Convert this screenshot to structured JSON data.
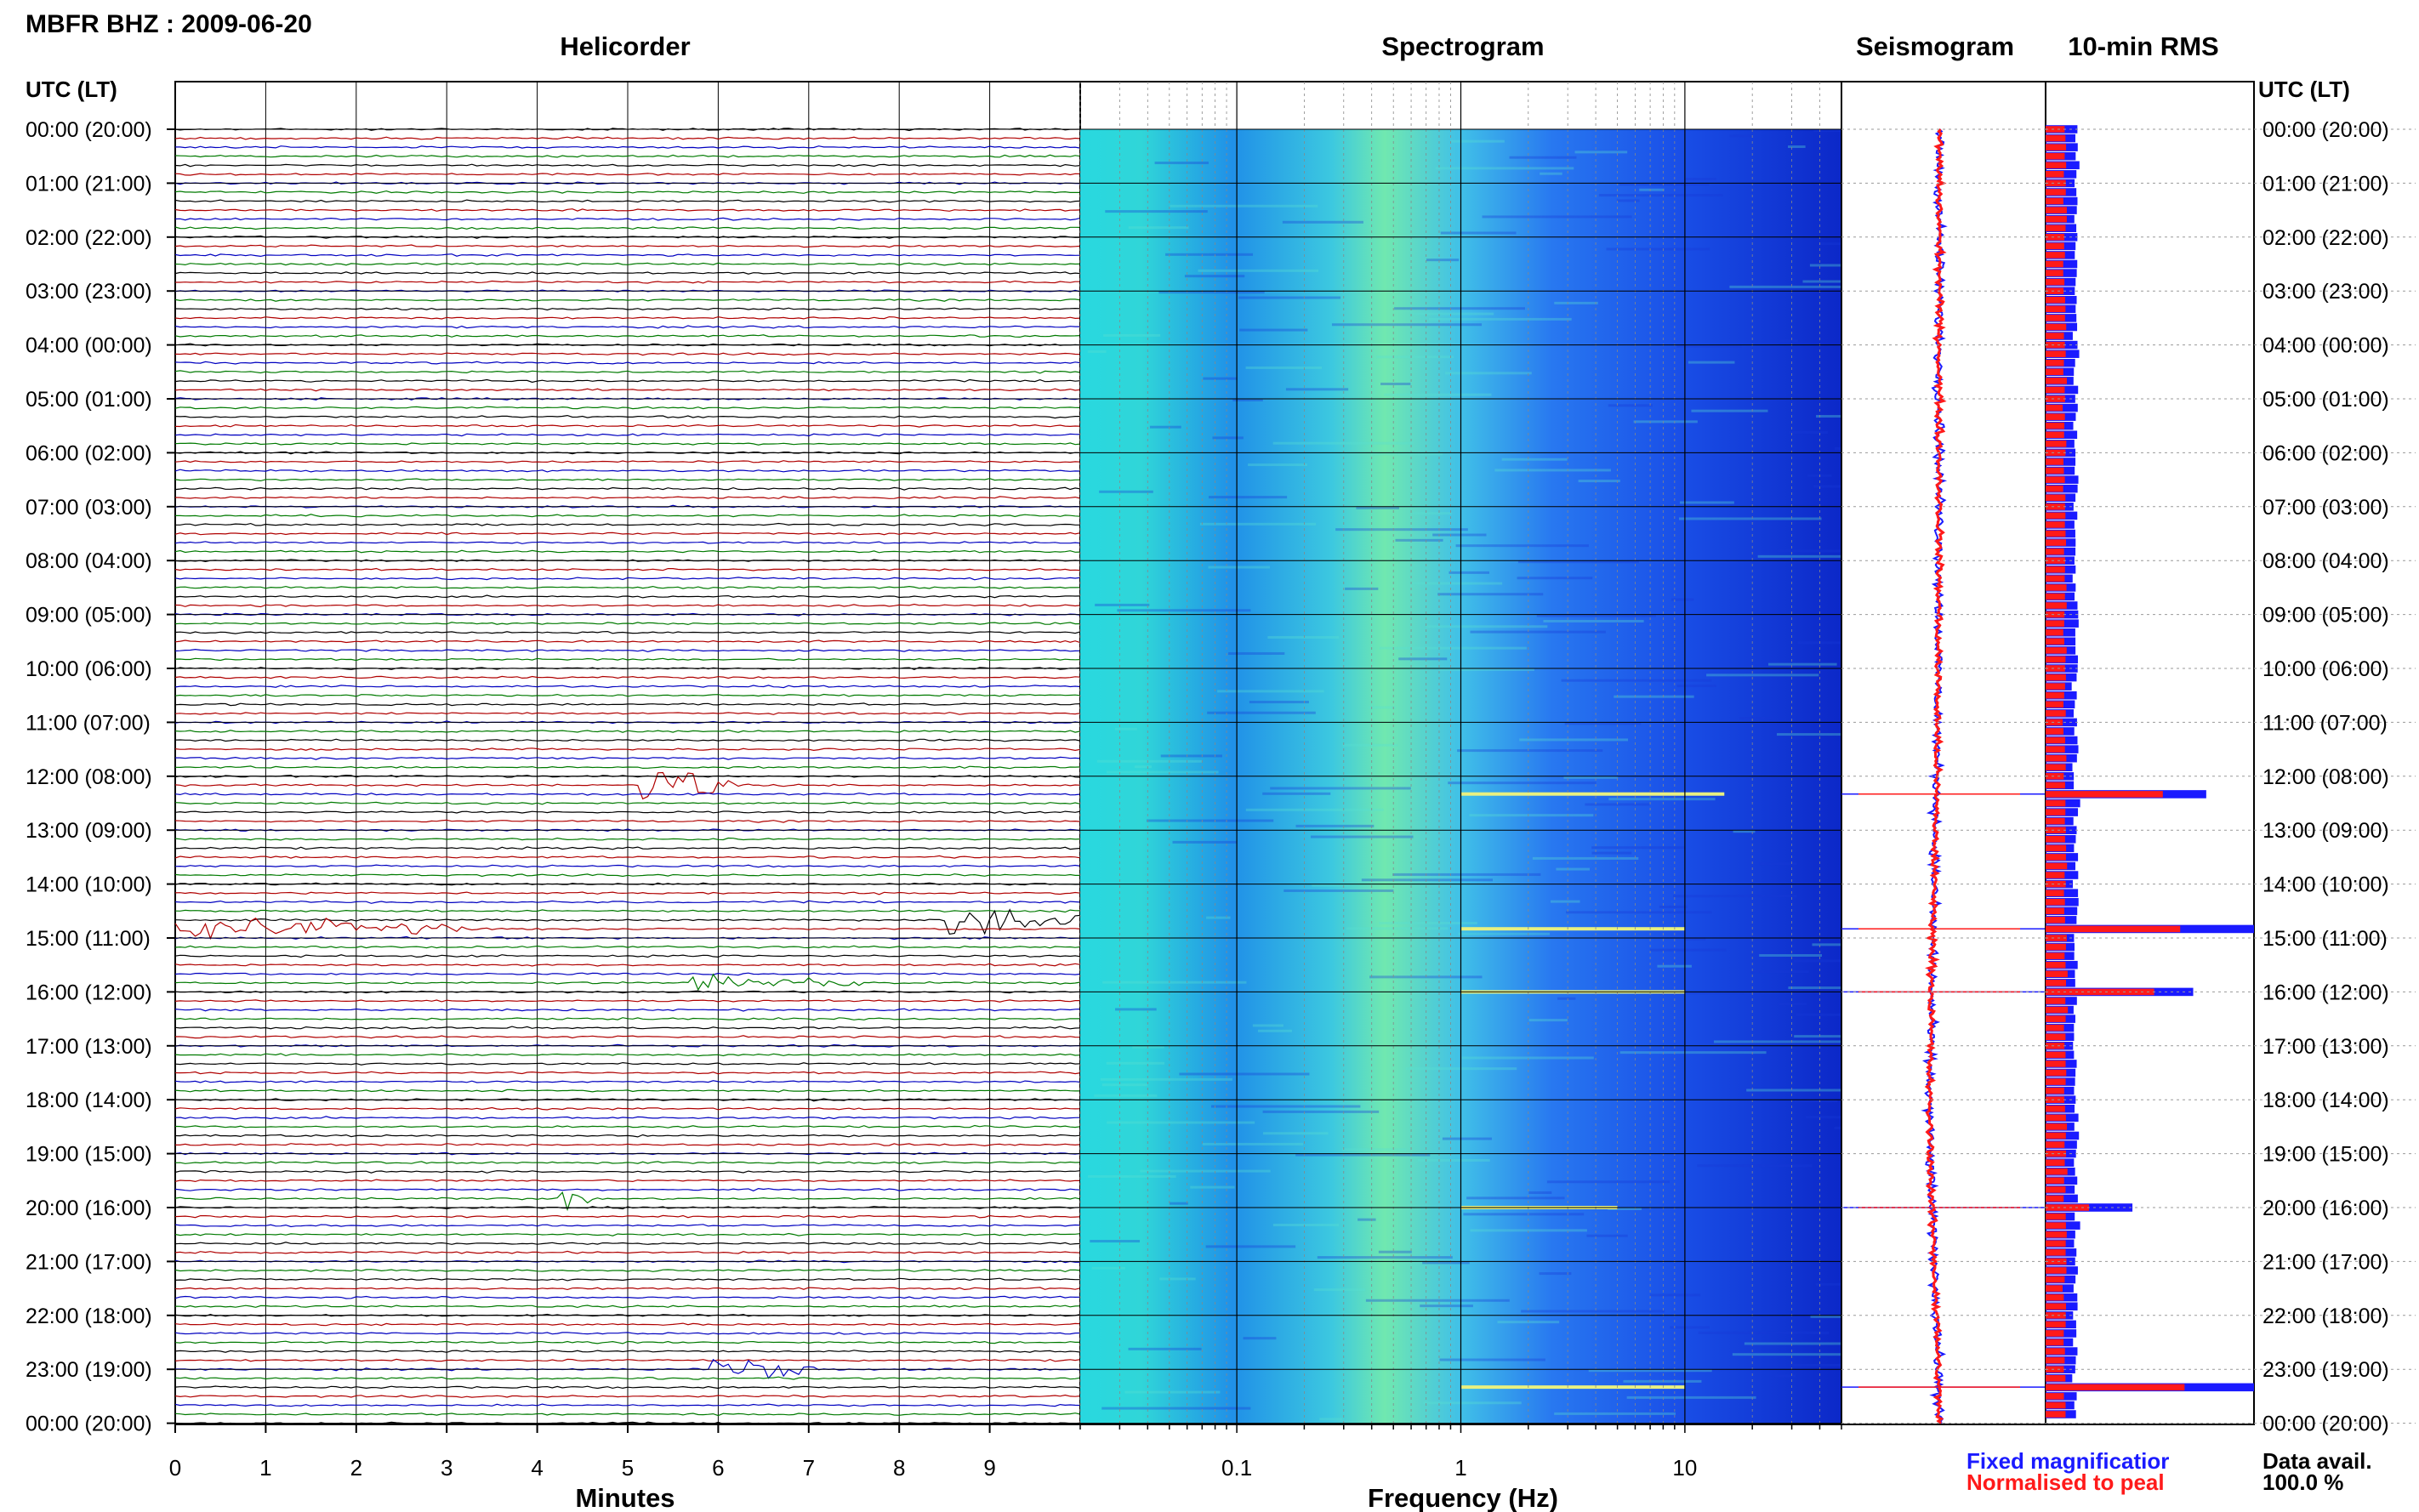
{
  "header": {
    "station_title": "MBFR BHZ : 2009-06-20",
    "utc_lt_label": "UTC (LT)"
  },
  "panels": {
    "helicorder": "Helicorder",
    "spectrogram": "Spectrogram",
    "seismogram": "Seismogram",
    "rms": "10-min RMS"
  },
  "axes": {
    "helicorder_xlabel": "Minutes",
    "spectrogram_xlabel": "Frequency (Hz)"
  },
  "legend": {
    "fixed": "Fixed magnificatior",
    "normalised": "Normalised to peal",
    "fixed_color": "#1a1aff",
    "normalised_color": "#ff1a1a"
  },
  "availability": {
    "label": "Data avail.",
    "value": "100.0 %"
  },
  "colors": {
    "trace_cycle": [
      "#000000",
      "#b00000",
      "#0000c0",
      "#007a00"
    ],
    "spectro_low": "#1530e0",
    "spectro_high": "#40f0d0",
    "rms_fixed": "#1a1aff",
    "rms_norm": "#ff1a1a"
  },
  "chart_data": [
    {
      "type": "line",
      "name": "helicorder",
      "xlabel": "Minutes",
      "xlim": [
        0,
        10
      ],
      "x_ticks": [
        "0",
        "1",
        "2",
        "3",
        "4",
        "5",
        "6",
        "7",
        "8",
        "9"
      ],
      "y_tick_labels": [
        "00:00 (20:00)",
        "01:00 (21:00)",
        "02:00 (22:00)",
        "03:00 (23:00)",
        "04:00 (00:00)",
        "05:00 (01:00)",
        "06:00 (02:00)",
        "07:00 (03:00)",
        "08:00 (04:00)",
        "09:00 (05:00)",
        "10:00 (06:00)",
        "11:00 (07:00)",
        "12:00 (08:00)",
        "13:00 (09:00)",
        "14:00 (10:00)",
        "15:00 (11:00)",
        "16:00 (12:00)",
        "17:00 (13:00)",
        "18:00 (14:00)",
        "19:00 (15:00)",
        "20:00 (16:00)",
        "21:00 (17:00)",
        "22:00 (18:00)",
        "23:00 (19:00)",
        "00:00 (20:00)"
      ],
      "traces_per_hour": 6,
      "events": [
        {
          "hour": 12.17,
          "start_min": 5.15,
          "end_min": 6.2,
          "amplitude": 2.6
        },
        {
          "hour": 14.67,
          "start_min": 8.55,
          "end_min": 10.0,
          "amplitude": 2.2
        },
        {
          "hour": 14.83,
          "start_min": 0.0,
          "end_min": 3.2,
          "amplitude": 1.5
        },
        {
          "hour": 15.83,
          "start_min": 5.7,
          "end_min": 7.6,
          "amplitude": 1.2
        },
        {
          "hour": 19.83,
          "start_min": 4.25,
          "end_min": 4.6,
          "amplitude": 1.8
        },
        {
          "hour": 23.0,
          "start_min": 5.9,
          "end_min": 7.1,
          "amplitude": 1.9
        }
      ]
    },
    {
      "type": "heatmap",
      "name": "spectrogram",
      "xlabel": "Frequency (Hz)",
      "x_scale": "log",
      "xlim": [
        0.02,
        50
      ],
      "x_tick_labels": [
        "0.1",
        "1",
        "10"
      ],
      "x_tick_values": [
        0.1,
        1,
        10
      ],
      "peak_band_hz": [
        0.2,
        0.6
      ],
      "hour_bands_hz": [
        {
          "hour": 12.33,
          "from": 1.0,
          "to": 15
        },
        {
          "hour": 14.83,
          "from": 1.0,
          "to": 10
        },
        {
          "hour": 16.0,
          "from": 1.0,
          "to": 10
        },
        {
          "hour": 20.0,
          "from": 1.0,
          "to": 5
        },
        {
          "hour": 23.33,
          "from": 1.0,
          "to": 10
        }
      ]
    },
    {
      "type": "line",
      "name": "seismogram",
      "series": [
        {
          "name": "Fixed magnificatior",
          "color": "#1a1aff"
        },
        {
          "name": "Normalised to peal",
          "color": "#ff1a1a"
        }
      ],
      "trend_hours": [
        0,
        4,
        8,
        12,
        14,
        16,
        18,
        20,
        22,
        24
      ],
      "trend_offset": [
        0.0,
        0.0,
        0.0,
        -0.05,
        -0.1,
        -0.15,
        -0.2,
        -0.15,
        -0.05,
        0.0
      ],
      "spike_hours": [
        12.33,
        14.83,
        16.0,
        20.0,
        23.33
      ]
    },
    {
      "type": "bar",
      "name": "10-min RMS",
      "hours": [
        12.33,
        14.83,
        16.0,
        20.0,
        23.33
      ],
      "fixed_values": [
        3.7,
        4.8,
        3.4,
        2.0,
        4.8
      ],
      "normalised_values": [
        2.7,
        3.1,
        2.5,
        1.0,
        3.2
      ],
      "baseline_fixed": 0.7,
      "baseline_normalised": 0.45,
      "xlim": [
        0,
        4.8
      ]
    }
  ]
}
